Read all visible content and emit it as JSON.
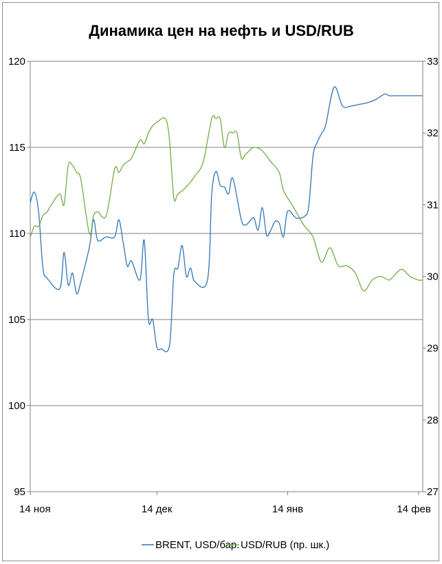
{
  "chart_data": {
    "type": "line",
    "title": "Динамика цен на нефть и USD/RUB",
    "x_ticks": [
      "14 ноя",
      "14 дек",
      "14 янв",
      "14 фев"
    ],
    "y_left": {
      "min": 95,
      "max": 120,
      "ticks": [
        "95",
        "100",
        "105",
        "110",
        "115",
        "120"
      ]
    },
    "y_right": {
      "min": 27,
      "max": 33,
      "ticks": [
        "27",
        "28",
        "29",
        "30",
        "31",
        "32",
        "33"
      ]
    },
    "grid": "horizontal",
    "legend_position": "bottom",
    "series": [
      {
        "name": "BRENT, USD/бар.",
        "axis": "left",
        "color": "#2e75b6",
        "x": [
          "14 ноя",
          "15 ноя",
          "16 ноя",
          "17 ноя",
          "18 ноя",
          "21 ноя",
          "22 ноя",
          "23 ноя",
          "24 ноя",
          "25 ноя",
          "26 ноя",
          "28 ноя",
          "29 ноя",
          "30 ноя",
          "2 дек",
          "4 дек",
          "5 дек",
          "6 дек",
          "7 дек",
          "8 дек",
          "10 дек",
          "11 дек",
          "12 дек",
          "13 дек",
          "14 дек",
          "15 дек",
          "17 дек",
          "18 дек",
          "19 дек",
          "20 дек",
          "21 дек",
          "22 дек",
          "23 дек",
          "26 дек",
          "27 дек",
          "28 дек",
          "29 дек",
          "30 дек",
          "31 дек",
          "1 янв",
          "3 янв",
          "4 янв",
          "5 янв",
          "6 янв",
          "7 янв",
          "8 янв",
          "9 янв",
          "10 янв",
          "11 янв",
          "12 янв",
          "13 янв",
          "14 янв",
          "16 янв",
          "18 янв",
          "19 янв",
          "20 янв",
          "21 янв",
          "22 янв",
          "23 янв",
          "25 янв",
          "27 янв",
          "29 янв",
          "31 янв",
          "2 фев",
          "4 фев",
          "6 фев",
          "7 фев",
          "8 фев",
          "9 фев",
          "10 фев",
          "12 фев",
          "14 фев",
          "15 фев"
        ],
        "values": [
          111.8,
          112.4,
          111.2,
          108.0,
          107.4,
          106.8,
          108.9,
          107.0,
          107.7,
          106.5,
          107.2,
          109.2,
          110.8,
          109.6,
          109.8,
          109.8,
          110.8,
          109.5,
          108.1,
          108.4,
          107.3,
          109.6,
          105.0,
          105.0,
          103.4,
          103.3,
          103.5,
          107.6,
          108.0,
          109.3,
          107.5,
          108.0,
          107.2,
          107.3,
          112.3,
          113.6,
          112.8,
          112.7,
          112.3,
          113.2,
          110.8,
          110.5,
          110.7,
          110.9,
          110.2,
          111.5,
          109.9,
          110.2,
          110.7,
          110.6,
          109.8,
          111.3,
          110.9,
          111.0,
          111.6,
          114.5,
          115.3,
          115.8,
          116.3,
          118.5,
          117.4,
          117.4,
          117.5,
          117.6,
          117.8,
          118.1,
          118.0,
          118.0,
          118.0,
          118.0,
          118.0,
          118.0,
          118.0
        ]
      },
      {
        "name": "USD/RUB (пр. шк.)",
        "axis": "right",
        "color": "#70ad47",
        "x": [
          "14 ноя",
          "15 ноя",
          "16 ноя",
          "17 ноя",
          "18 ноя",
          "19 ноя",
          "21 ноя",
          "22 ноя",
          "23 ноя",
          "24 ноя",
          "25 ноя",
          "26 ноя",
          "28 ноя",
          "29 ноя",
          "30 ноя",
          "2 дек",
          "4 дек",
          "5 дек",
          "6 дек",
          "7 дек",
          "8 дек",
          "10 дек",
          "11 дек",
          "12 дек",
          "13 дек",
          "14 дек",
          "16 дек",
          "17 дек",
          "18 дек",
          "19 дек",
          "21 дек",
          "23 дек",
          "25 дек",
          "27 дек",
          "28 дек",
          "29 дек",
          "30 дек",
          "31 дек",
          "1 янв",
          "2 янв",
          "3 янв",
          "4 янв",
          "6 янв",
          "8 янв",
          "10 янв",
          "12 янв",
          "13 янв",
          "15 янв",
          "17 янв",
          "18 янв",
          "20 янв",
          "22 янв",
          "24 янв",
          "26 янв",
          "28 янв",
          "30 янв",
          "1 фев",
          "3 фев",
          "5 фев",
          "7 фев",
          "8 фев",
          "10 фев",
          "12 фев",
          "14 фев",
          "15 фев"
        ],
        "values": [
          30.55,
          30.7,
          30.7,
          30.85,
          30.9,
          31.0,
          31.15,
          31.0,
          31.55,
          31.55,
          31.45,
          31.35,
          30.6,
          30.85,
          30.9,
          30.85,
          31.5,
          31.45,
          31.55,
          31.6,
          31.65,
          31.9,
          31.85,
          32.0,
          32.1,
          32.15,
          32.2,
          31.9,
          31.1,
          31.15,
          31.25,
          31.4,
          31.6,
          32.2,
          32.2,
          32.2,
          31.8,
          32.0,
          32.0,
          32.0,
          31.65,
          31.7,
          31.8,
          31.75,
          31.6,
          31.45,
          31.2,
          31.0,
          30.8,
          30.7,
          30.55,
          30.2,
          30.4,
          30.15,
          30.15,
          30.05,
          29.8,
          29.95,
          30.0,
          29.95,
          30.0,
          30.1,
          30.0,
          29.95,
          29.95
        ]
      }
    ]
  }
}
